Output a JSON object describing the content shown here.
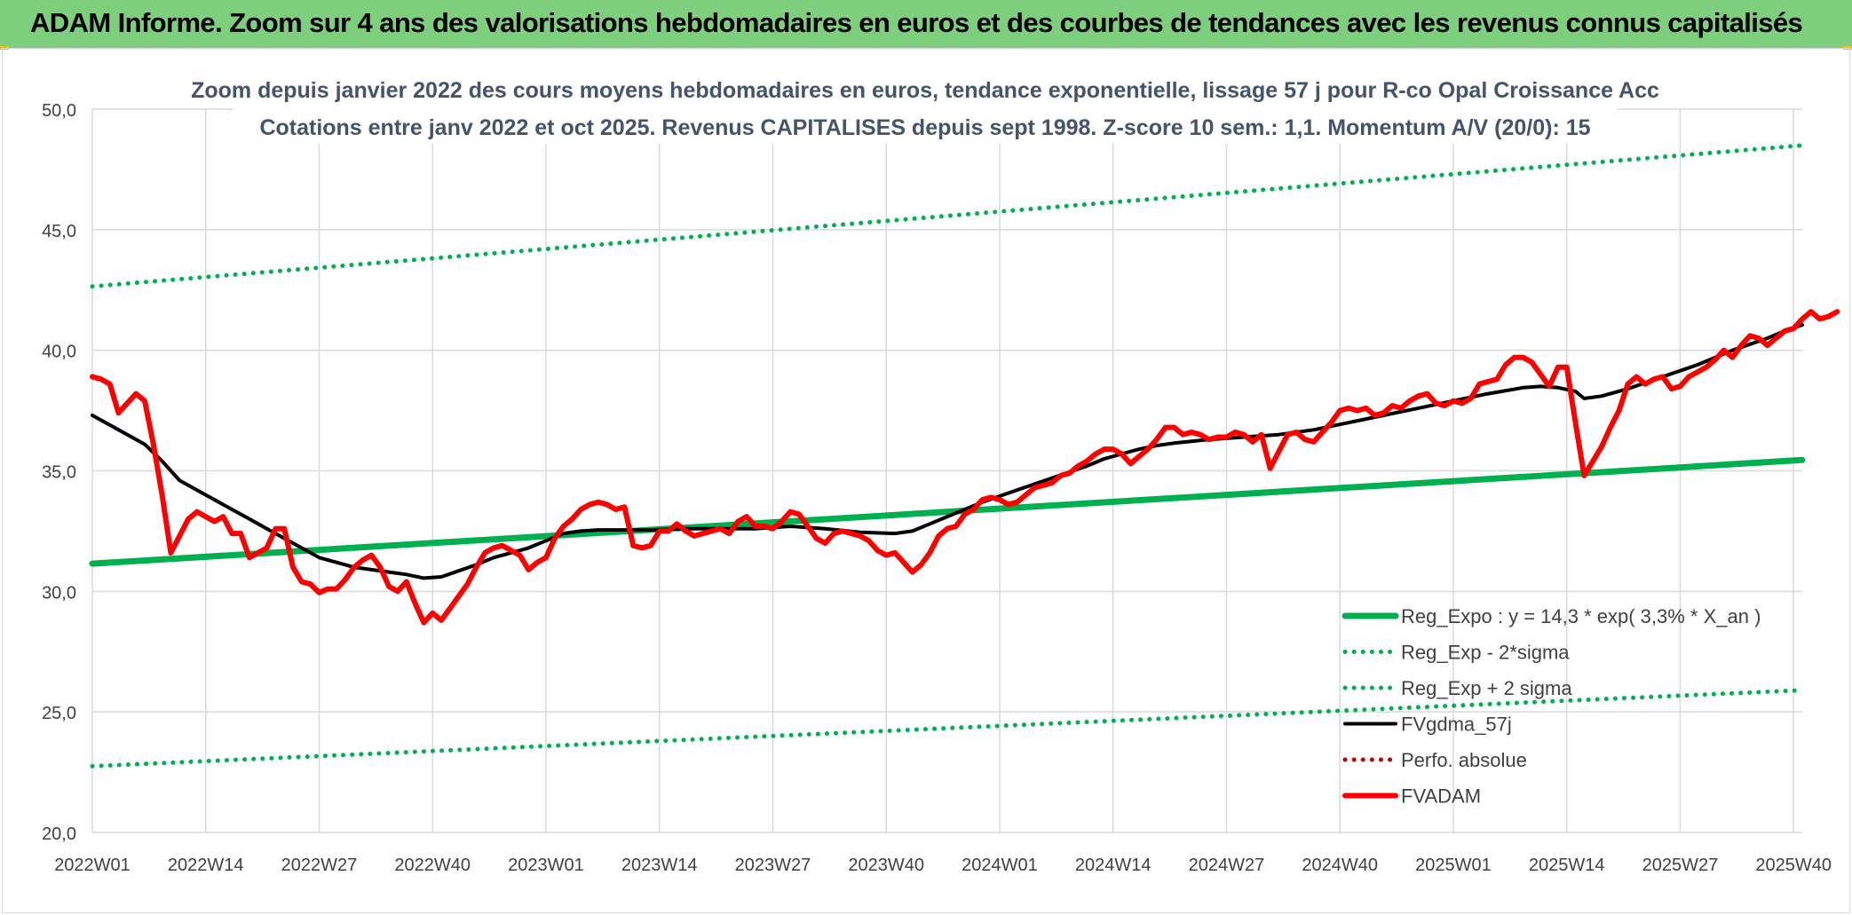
{
  "banner": {
    "title": "ADAM Informe. Zoom sur 4 ans des valorisations hebdomadaires en euros et des courbes de tendances avec les revenus connus capitalisés"
  },
  "colors": {
    "banner_bg": "#7dcf7d",
    "trend": "#00b050",
    "smooth": "#000000",
    "price": "#ff0000",
    "perf": "#c00000",
    "grid": "#d9d9d9",
    "text": "#404040",
    "title_text": "#44546a"
  },
  "chart_data": {
    "type": "line",
    "title_line1": "Zoom depuis janvier 2022 des cours moyens hebdomadaires en euros, tendance exponentielle, lissage 57 j pour R-co Opal Croissance Acc",
    "title_line2": "Cotations entre janv 2022 et oct 2025. Revenus CAPITALISES depuis sept 1998. Z-score 10 sem.: 1,1. Momentum A/V (20/0): 15",
    "ylim": [
      20,
      50
    ],
    "y_ticks": [
      "20,0",
      "25,0",
      "30,0",
      "35,0",
      "40,0",
      "45,0",
      "50,0"
    ],
    "x_range": [
      0,
      196
    ],
    "x_ticks": [
      {
        "label": "2022W01",
        "x": 0
      },
      {
        "label": "2022W14",
        "x": 13
      },
      {
        "label": "2022W27",
        "x": 26
      },
      {
        "label": "2022W40",
        "x": 39
      },
      {
        "label": "2023W01",
        "x": 52
      },
      {
        "label": "2023W14",
        "x": 65
      },
      {
        "label": "2023W27",
        "x": 78
      },
      {
        "label": "2023W40",
        "x": 91
      },
      {
        "label": "2024W01",
        "x": 104
      },
      {
        "label": "2024W14",
        "x": 117
      },
      {
        "label": "2024W27",
        "x": 130
      },
      {
        "label": "2024W40",
        "x": 143
      },
      {
        "label": "2025W01",
        "x": 156
      },
      {
        "label": "2025W14",
        "x": 169
      },
      {
        "label": "2025W27",
        "x": 182
      },
      {
        "label": "2025W40",
        "x": 195
      }
    ],
    "series": [
      {
        "name": "Reg_Expo : y = 14,3 * exp( 3,3% *  X_an )",
        "style": "solid-thick",
        "color": "#00b050",
        "points": [
          [
            0,
            31.15
          ],
          [
            196,
            35.45
          ]
        ]
      },
      {
        "name": "Reg_Exp - 2*sigma",
        "style": "dotted",
        "color": "#00b050",
        "points": [
          [
            0,
            22.75
          ],
          [
            196,
            25.9
          ]
        ]
      },
      {
        "name": "Reg_Exp + 2 sigma",
        "style": "dotted",
        "color": "#00b050",
        "points": [
          [
            0,
            42.65
          ],
          [
            196,
            48.5
          ]
        ]
      },
      {
        "name": "FVgdma_57j",
        "style": "solid",
        "color": "#000000",
        "points": [
          [
            0,
            37.3
          ],
          [
            2,
            36.9
          ],
          [
            4,
            36.5
          ],
          [
            6,
            36.1
          ],
          [
            8,
            35.4
          ],
          [
            10,
            34.6
          ],
          [
            12,
            34.2
          ],
          [
            14,
            33.8
          ],
          [
            16,
            33.4
          ],
          [
            18,
            33.0
          ],
          [
            20,
            32.6
          ],
          [
            22,
            32.2
          ],
          [
            24,
            31.8
          ],
          [
            26,
            31.4
          ],
          [
            28,
            31.2
          ],
          [
            30,
            31.0
          ],
          [
            32,
            30.9
          ],
          [
            34,
            30.8
          ],
          [
            36,
            30.7
          ],
          [
            38,
            30.55
          ],
          [
            40,
            30.6
          ],
          [
            42,
            30.85
          ],
          [
            44,
            31.1
          ],
          [
            46,
            31.4
          ],
          [
            48,
            31.6
          ],
          [
            50,
            31.8
          ],
          [
            52,
            32.1
          ],
          [
            54,
            32.4
          ],
          [
            56,
            32.5
          ],
          [
            58,
            32.55
          ],
          [
            60,
            32.55
          ],
          [
            64,
            32.55
          ],
          [
            68,
            32.6
          ],
          [
            72,
            32.6
          ],
          [
            76,
            32.6
          ],
          [
            80,
            32.7
          ],
          [
            84,
            32.6
          ],
          [
            88,
            32.45
          ],
          [
            92,
            32.4
          ],
          [
            94,
            32.5
          ],
          [
            96,
            32.8
          ],
          [
            98,
            33.1
          ],
          [
            100,
            33.4
          ],
          [
            102,
            33.7
          ],
          [
            104,
            33.95
          ],
          [
            106,
            34.2
          ],
          [
            108,
            34.45
          ],
          [
            110,
            34.7
          ],
          [
            112,
            34.95
          ],
          [
            114,
            35.2
          ],
          [
            116,
            35.5
          ],
          [
            118,
            35.7
          ],
          [
            120,
            35.9
          ],
          [
            122,
            36.05
          ],
          [
            124,
            36.15
          ],
          [
            128,
            36.3
          ],
          [
            132,
            36.4
          ],
          [
            136,
            36.5
          ],
          [
            140,
            36.7
          ],
          [
            144,
            37.0
          ],
          [
            148,
            37.3
          ],
          [
            152,
            37.6
          ],
          [
            156,
            37.9
          ],
          [
            160,
            38.2
          ],
          [
            164,
            38.45
          ],
          [
            166,
            38.5
          ],
          [
            168,
            38.45
          ],
          [
            170,
            38.3
          ],
          [
            171,
            38.0
          ],
          [
            173,
            38.1
          ],
          [
            176,
            38.4
          ],
          [
            180,
            38.9
          ],
          [
            184,
            39.4
          ],
          [
            188,
            40.0
          ],
          [
            192,
            40.5
          ],
          [
            194,
            40.8
          ],
          [
            196,
            41.05
          ]
        ]
      },
      {
        "name": "Perfo. absolue",
        "style": "dotted",
        "color": "#c00000",
        "points": []
      },
      {
        "name": "FVADAM",
        "style": "solid-thick",
        "color": "#ff0000",
        "points": [
          [
            0,
            38.9
          ],
          [
            1,
            38.8
          ],
          [
            2,
            38.6
          ],
          [
            3,
            37.4
          ],
          [
            4,
            37.8
          ],
          [
            5,
            38.2
          ],
          [
            6,
            37.9
          ],
          [
            7,
            36.1
          ],
          [
            8,
            34.0
          ],
          [
            9,
            31.6
          ],
          [
            10,
            32.3
          ],
          [
            11,
            33.0
          ],
          [
            12,
            33.3
          ],
          [
            13,
            33.1
          ],
          [
            14,
            32.9
          ],
          [
            15,
            33.1
          ],
          [
            16,
            32.4
          ],
          [
            17,
            32.4
          ],
          [
            18,
            31.4
          ],
          [
            19,
            31.6
          ],
          [
            20,
            31.8
          ],
          [
            21,
            32.6
          ],
          [
            22,
            32.6
          ],
          [
            23,
            31.0
          ],
          [
            24,
            30.4
          ],
          [
            25,
            30.3
          ],
          [
            26,
            29.95
          ],
          [
            27,
            30.1
          ],
          [
            28,
            30.1
          ],
          [
            29,
            30.5
          ],
          [
            30,
            31.0
          ],
          [
            31,
            31.3
          ],
          [
            32,
            31.5
          ],
          [
            33,
            31.0
          ],
          [
            34,
            30.2
          ],
          [
            35,
            30.0
          ],
          [
            36,
            30.4
          ],
          [
            37,
            29.5
          ],
          [
            38,
            28.7
          ],
          [
            39,
            29.1
          ],
          [
            40,
            28.8
          ],
          [
            41,
            29.3
          ],
          [
            42,
            29.8
          ],
          [
            43,
            30.3
          ],
          [
            44,
            31.0
          ],
          [
            45,
            31.6
          ],
          [
            46,
            31.8
          ],
          [
            47,
            31.9
          ],
          [
            48,
            31.7
          ],
          [
            49,
            31.5
          ],
          [
            50,
            30.9
          ],
          [
            51,
            31.2
          ],
          [
            52,
            31.4
          ],
          [
            53,
            32.2
          ],
          [
            54,
            32.7
          ],
          [
            55,
            33.0
          ],
          [
            56,
            33.4
          ],
          [
            57,
            33.6
          ],
          [
            58,
            33.7
          ],
          [
            59,
            33.6
          ],
          [
            60,
            33.4
          ],
          [
            61,
            33.5
          ],
          [
            62,
            31.9
          ],
          [
            63,
            31.8
          ],
          [
            64,
            31.9
          ],
          [
            65,
            32.5
          ],
          [
            66,
            32.5
          ],
          [
            67,
            32.8
          ],
          [
            68,
            32.5
          ],
          [
            69,
            32.3
          ],
          [
            70,
            32.4
          ],
          [
            71,
            32.5
          ],
          [
            72,
            32.6
          ],
          [
            73,
            32.4
          ],
          [
            74,
            32.9
          ],
          [
            75,
            33.1
          ],
          [
            76,
            32.7
          ],
          [
            77,
            32.7
          ],
          [
            78,
            32.6
          ],
          [
            79,
            32.9
          ],
          [
            80,
            33.3
          ],
          [
            81,
            33.2
          ],
          [
            82,
            32.7
          ],
          [
            83,
            32.2
          ],
          [
            84,
            32.0
          ],
          [
            85,
            32.4
          ],
          [
            86,
            32.5
          ],
          [
            87,
            32.4
          ],
          [
            88,
            32.3
          ],
          [
            89,
            32.1
          ],
          [
            90,
            31.7
          ],
          [
            91,
            31.5
          ],
          [
            92,
            31.6
          ],
          [
            93,
            31.2
          ],
          [
            94,
            30.8
          ],
          [
            95,
            31.1
          ],
          [
            96,
            31.6
          ],
          [
            97,
            32.3
          ],
          [
            98,
            32.6
          ],
          [
            99,
            32.7
          ],
          [
            100,
            33.2
          ],
          [
            101,
            33.4
          ],
          [
            102,
            33.8
          ],
          [
            103,
            33.9
          ],
          [
            104,
            33.8
          ],
          [
            105,
            33.6
          ],
          [
            106,
            33.7
          ],
          [
            107,
            34.0
          ],
          [
            108,
            34.3
          ],
          [
            109,
            34.4
          ],
          [
            110,
            34.5
          ],
          [
            111,
            34.8
          ],
          [
            112,
            34.9
          ],
          [
            113,
            35.2
          ],
          [
            114,
            35.4
          ],
          [
            115,
            35.7
          ],
          [
            116,
            35.9
          ],
          [
            117,
            35.9
          ],
          [
            118,
            35.7
          ],
          [
            119,
            35.3
          ],
          [
            120,
            35.6
          ],
          [
            121,
            35.9
          ],
          [
            122,
            36.3
          ],
          [
            123,
            36.8
          ],
          [
            124,
            36.8
          ],
          [
            125,
            36.5
          ],
          [
            126,
            36.6
          ],
          [
            127,
            36.5
          ],
          [
            128,
            36.3
          ],
          [
            129,
            36.4
          ],
          [
            130,
            36.4
          ],
          [
            131,
            36.6
          ],
          [
            132,
            36.5
          ],
          [
            133,
            36.2
          ],
          [
            134,
            36.5
          ],
          [
            135,
            35.1
          ],
          [
            136,
            35.8
          ],
          [
            137,
            36.5
          ],
          [
            138,
            36.6
          ],
          [
            139,
            36.3
          ],
          [
            140,
            36.2
          ],
          [
            141,
            36.6
          ],
          [
            142,
            37.0
          ],
          [
            143,
            37.5
          ],
          [
            144,
            37.6
          ],
          [
            145,
            37.5
          ],
          [
            146,
            37.6
          ],
          [
            147,
            37.3
          ],
          [
            148,
            37.4
          ],
          [
            149,
            37.7
          ],
          [
            150,
            37.6
          ],
          [
            151,
            37.9
          ],
          [
            152,
            38.1
          ],
          [
            153,
            38.2
          ],
          [
            154,
            37.8
          ],
          [
            155,
            37.7
          ],
          [
            156,
            37.9
          ],
          [
            157,
            37.8
          ],
          [
            158,
            38.0
          ],
          [
            159,
            38.6
          ],
          [
            160,
            38.7
          ],
          [
            161,
            38.8
          ],
          [
            162,
            39.4
          ],
          [
            163,
            39.7
          ],
          [
            164,
            39.7
          ],
          [
            165,
            39.5
          ],
          [
            166,
            39.0
          ],
          [
            167,
            38.5
          ],
          [
            168,
            39.3
          ],
          [
            169,
            39.3
          ],
          [
            170,
            37.0
          ],
          [
            171,
            34.8
          ],
          [
            172,
            35.4
          ],
          [
            173,
            36.0
          ],
          [
            174,
            36.8
          ],
          [
            175,
            37.5
          ],
          [
            176,
            38.6
          ],
          [
            177,
            38.9
          ],
          [
            178,
            38.6
          ],
          [
            179,
            38.8
          ],
          [
            180,
            38.9
          ],
          [
            181,
            38.4
          ],
          [
            182,
            38.5
          ],
          [
            183,
            38.9
          ],
          [
            184,
            39.1
          ],
          [
            185,
            39.3
          ],
          [
            186,
            39.6
          ],
          [
            187,
            40.0
          ],
          [
            188,
            39.7
          ],
          [
            189,
            40.2
          ],
          [
            190,
            40.6
          ],
          [
            191,
            40.5
          ],
          [
            192,
            40.2
          ],
          [
            193,
            40.5
          ],
          [
            194,
            40.8
          ],
          [
            195,
            40.9
          ],
          [
            196,
            41.3
          ],
          [
            197,
            41.6
          ],
          [
            198,
            41.3
          ],
          [
            199,
            41.4
          ],
          [
            200,
            41.6
          ]
        ]
      }
    ]
  }
}
